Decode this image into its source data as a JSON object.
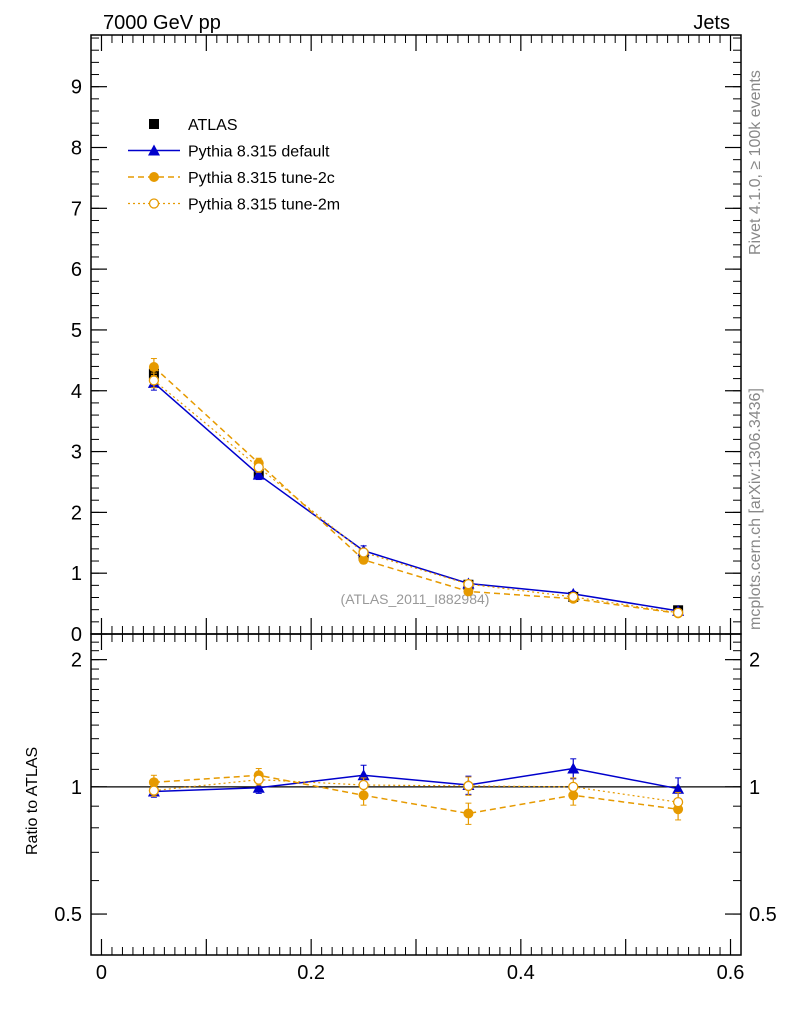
{
  "header": {
    "left_title": "7000 GeV pp",
    "right_title": "Jets"
  },
  "side_labels": {
    "rivet": "Rivet 4.1.0, ≥ 100k events",
    "mcplots": "mcplots.cern.ch [arXiv:1306.3436]"
  },
  "watermark": "(ATLAS_2011_I882984)",
  "ratio_ylabel": "Ratio to ATLAS",
  "colors": {
    "data": "#000000",
    "default": "#0000cc",
    "tune2c": "#e69a00",
    "tune2m": "#e69a00"
  },
  "chart_data": [
    {
      "type": "line",
      "panel": "main",
      "xlim": [
        -0.01,
        0.61
      ],
      "ylim": [
        0,
        9.85
      ],
      "yticks": [
        0,
        1,
        2,
        3,
        4,
        5,
        6,
        7,
        8,
        9
      ],
      "ytick_labels": [
        "0",
        "1",
        "2",
        "3",
        "4",
        "5",
        "6",
        "7",
        "8",
        "9"
      ],
      "x": [
        0.05,
        0.15,
        0.25,
        0.35,
        0.45,
        0.55
      ],
      "series": [
        {
          "name": "ATLAS",
          "key": "data",
          "style": "data",
          "values": [
            4.28,
            2.63,
            1.29,
            0.81,
            0.61,
            0.39
          ],
          "errors": [
            0.12,
            0.08,
            0.05,
            0.04,
            0.03,
            0.02
          ]
        },
        {
          "name": "Pythia 8.315 default",
          "key": "default",
          "style": "solid-triangle",
          "values": [
            4.13,
            2.62,
            1.37,
            0.83,
            0.66,
            0.38
          ],
          "errors": [
            0.12,
            0.08,
            0.08,
            0.04,
            0.04,
            0.03
          ]
        },
        {
          "name": "Pythia 8.315 tune-2c",
          "key": "tune2c",
          "style": "dashed-dot",
          "values": [
            4.39,
            2.81,
            1.22,
            0.7,
            0.58,
            0.34
          ],
          "errors": [
            0.14,
            0.08,
            0.06,
            0.04,
            0.03,
            0.02
          ]
        },
        {
          "name": "Pythia 8.315 tune-2m",
          "key": "tune2m",
          "style": "dotted-circle",
          "values": [
            4.17,
            2.74,
            1.34,
            0.82,
            0.61,
            0.35
          ],
          "errors": [
            0.12,
            0.08,
            0.06,
            0.04,
            0.03,
            0.02
          ]
        }
      ]
    },
    {
      "type": "line",
      "panel": "ratio",
      "xlim": [
        -0.01,
        0.61
      ],
      "ylim": [
        0.4,
        2.3
      ],
      "ylog": true,
      "yticks": [
        0.5,
        1,
        2
      ],
      "ytick_labels": [
        "0.5",
        "1",
        "2"
      ],
      "xticks": [
        0,
        0.2,
        0.4,
        0.6
      ],
      "xtick_labels": [
        "0",
        "0.2",
        "0.4",
        "0.6"
      ],
      "x": [
        0.05,
        0.15,
        0.25,
        0.35,
        0.45,
        0.55
      ],
      "series": [
        {
          "name": "Pythia 8.315 default",
          "key": "default",
          "style": "solid-triangle",
          "values": [
            0.975,
            0.995,
            1.065,
            1.01,
            1.105,
            0.99
          ],
          "errors": [
            0.03,
            0.03,
            0.06,
            0.05,
            0.06,
            0.06
          ]
        },
        {
          "name": "Pythia 8.315 tune-2c",
          "key": "tune2c",
          "style": "dashed-dot",
          "values": [
            1.025,
            1.065,
            0.955,
            0.865,
            0.955,
            0.885
          ],
          "errors": [
            0.04,
            0.04,
            0.05,
            0.05,
            0.05,
            0.05
          ]
        },
        {
          "name": "Pythia 8.315 tune-2m",
          "key": "tune2m",
          "style": "dotted-circle",
          "values": [
            0.98,
            1.04,
            1.01,
            1.005,
            1.0,
            0.92
          ],
          "errors": [
            0.03,
            0.03,
            0.04,
            0.05,
            0.05,
            0.05
          ]
        }
      ]
    }
  ]
}
